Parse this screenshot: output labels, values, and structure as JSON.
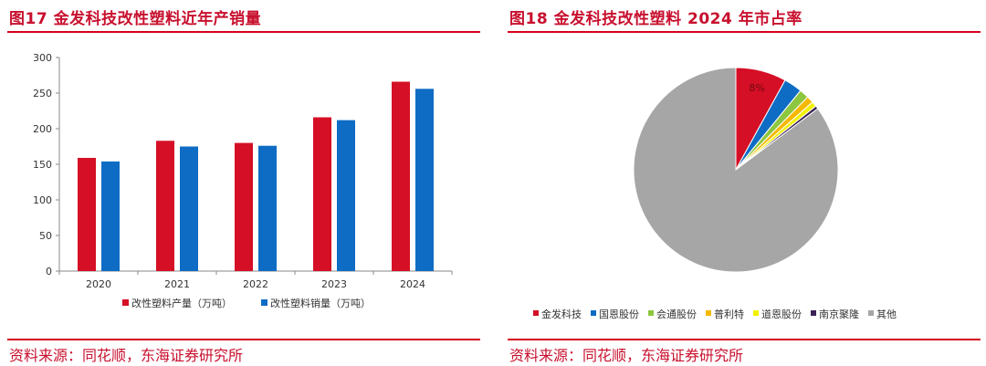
{
  "left": {
    "title": "图17  金发科技改性塑料近年产销量",
    "source": "资料来源：同花顺，东海证券研究所"
  },
  "right": {
    "title": "图18  金发科技改性塑料 2024 年市占率",
    "source": "资料来源：同花顺，东海证券研究所"
  },
  "colors": {
    "accent": "#c8102e",
    "rule": "#d6001c",
    "production": "#d50f25",
    "sales": "#0e6cc4"
  },
  "chart_data": [
    {
      "type": "bar",
      "title": "图17  金发科技改性塑料近年产销量",
      "categories": [
        "2020",
        "2021",
        "2022",
        "2023",
        "2024"
      ],
      "ylim": [
        0,
        300
      ],
      "yticks": [
        0,
        50,
        100,
        150,
        200,
        250,
        300
      ],
      "grid": false,
      "legend_position": "bottom",
      "series": [
        {
          "name": "改性塑料产量（万吨）",
          "color": "#d50f25",
          "values": [
            159,
            183,
            180,
            216,
            266
          ]
        },
        {
          "name": "改性塑料销量（万吨）",
          "color": "#0e6cc4",
          "values": [
            154,
            175,
            176,
            212,
            256
          ]
        }
      ]
    },
    {
      "type": "pie",
      "title": "图18  金发科技改性塑料 2024 年市占率",
      "legend_position": "bottom",
      "slices": [
        {
          "name": "金发科技",
          "value": 8.0,
          "label": "8%",
          "color": "#d50f25"
        },
        {
          "name": "国恩股份",
          "value": 2.9,
          "color": "#0e6cc4"
        },
        {
          "name": "会通股份",
          "value": 1.5,
          "color": "#8dc63f"
        },
        {
          "name": "普利特",
          "value": 1.1,
          "color": "#f5b800"
        },
        {
          "name": "道恩股份",
          "value": 0.8,
          "color": "#f2f200"
        },
        {
          "name": "南京聚隆",
          "value": 0.5,
          "color": "#3b2154"
        },
        {
          "name": "其他",
          "value": 85.2,
          "color": "#a6a6a6"
        }
      ]
    }
  ]
}
